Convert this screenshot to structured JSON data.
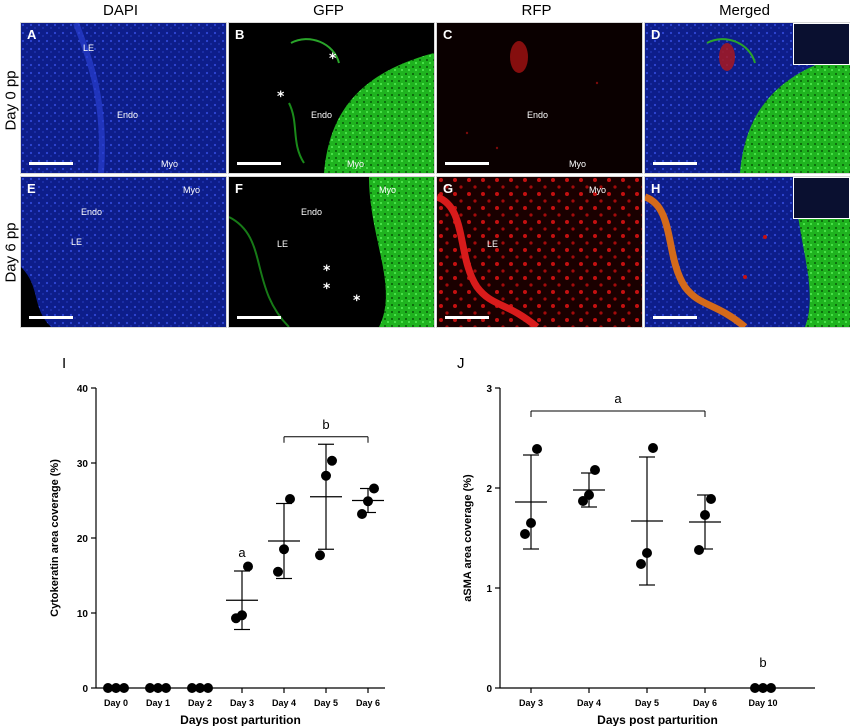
{
  "micrograph": {
    "columns": [
      "DAPI",
      "GFP",
      "RFP",
      "Merged"
    ],
    "rows": [
      "Day 0 pp",
      "Day 6 pp"
    ],
    "panels": [
      {
        "letter": "A",
        "tags": [
          "LE",
          "Endo",
          "Myo"
        ]
      },
      {
        "letter": "B",
        "tags": [
          "Endo",
          "Myo"
        ],
        "stars": [
          "*",
          "*"
        ]
      },
      {
        "letter": "C",
        "tags": [
          "Endo",
          "Myo"
        ]
      },
      {
        "letter": "D",
        "tags": []
      },
      {
        "letter": "E",
        "tags": [
          "Endo",
          "Myo",
          "LE"
        ]
      },
      {
        "letter": "F",
        "tags": [
          "Endo",
          "Myo",
          "LE"
        ],
        "stars": [
          "*",
          "*",
          "*"
        ]
      },
      {
        "letter": "G",
        "tags": [
          "Myo",
          "LE"
        ]
      },
      {
        "letter": "H",
        "tags": []
      }
    ]
  },
  "chart_data": [
    {
      "panel": "I",
      "type": "scatter",
      "title": "",
      "xlabel": "Days post parturition",
      "ylabel": "Cytokeratin area coverage (%)",
      "ylim": [
        0,
        40
      ],
      "yticks": [
        "0",
        "10",
        "20",
        "30",
        "40"
      ],
      "categories": [
        "Day 0",
        "Day 1",
        "Day 2",
        "Day 3",
        "Day 4",
        "Day 5",
        "Day 6"
      ],
      "points": [
        [
          0,
          0,
          0
        ],
        [
          0,
          0,
          0
        ],
        [
          0,
          0,
          0
        ],
        [
          9.3,
          9.7,
          16.2
        ],
        [
          15.5,
          18.5,
          25.2
        ],
        [
          17.7,
          28.3,
          30.3
        ],
        [
          23.2,
          24.9,
          26.6
        ]
      ],
      "mean": [
        null,
        null,
        null,
        11.7,
        19.6,
        25.5,
        25.0
      ],
      "sd": [
        null,
        null,
        null,
        3.9,
        5.0,
        7.0,
        1.6
      ],
      "annotations": {
        "a": "a",
        "b": "b"
      }
    },
    {
      "panel": "J",
      "type": "scatter",
      "title": "",
      "xlabel": "Days post parturition",
      "ylabel": "aSMA area coverage (%)",
      "ylim": [
        0,
        3
      ],
      "yticks": [
        "0",
        "1",
        "2",
        "3"
      ],
      "categories": [
        "Day 3",
        "Day 4",
        "Day 5",
        "Day 6",
        "Day 10"
      ],
      "points": [
        [
          1.54,
          1.65,
          2.39
        ],
        [
          1.87,
          1.93,
          2.18
        ],
        [
          1.24,
          1.35,
          2.4
        ],
        [
          1.38,
          1.73,
          1.89
        ],
        [
          0,
          0,
          0
        ]
      ],
      "mean": [
        1.86,
        1.98,
        1.67,
        1.66,
        null
      ],
      "sd": [
        0.47,
        0.17,
        0.64,
        0.27,
        null
      ],
      "annotations": {
        "a": "a",
        "b": "b"
      }
    }
  ]
}
